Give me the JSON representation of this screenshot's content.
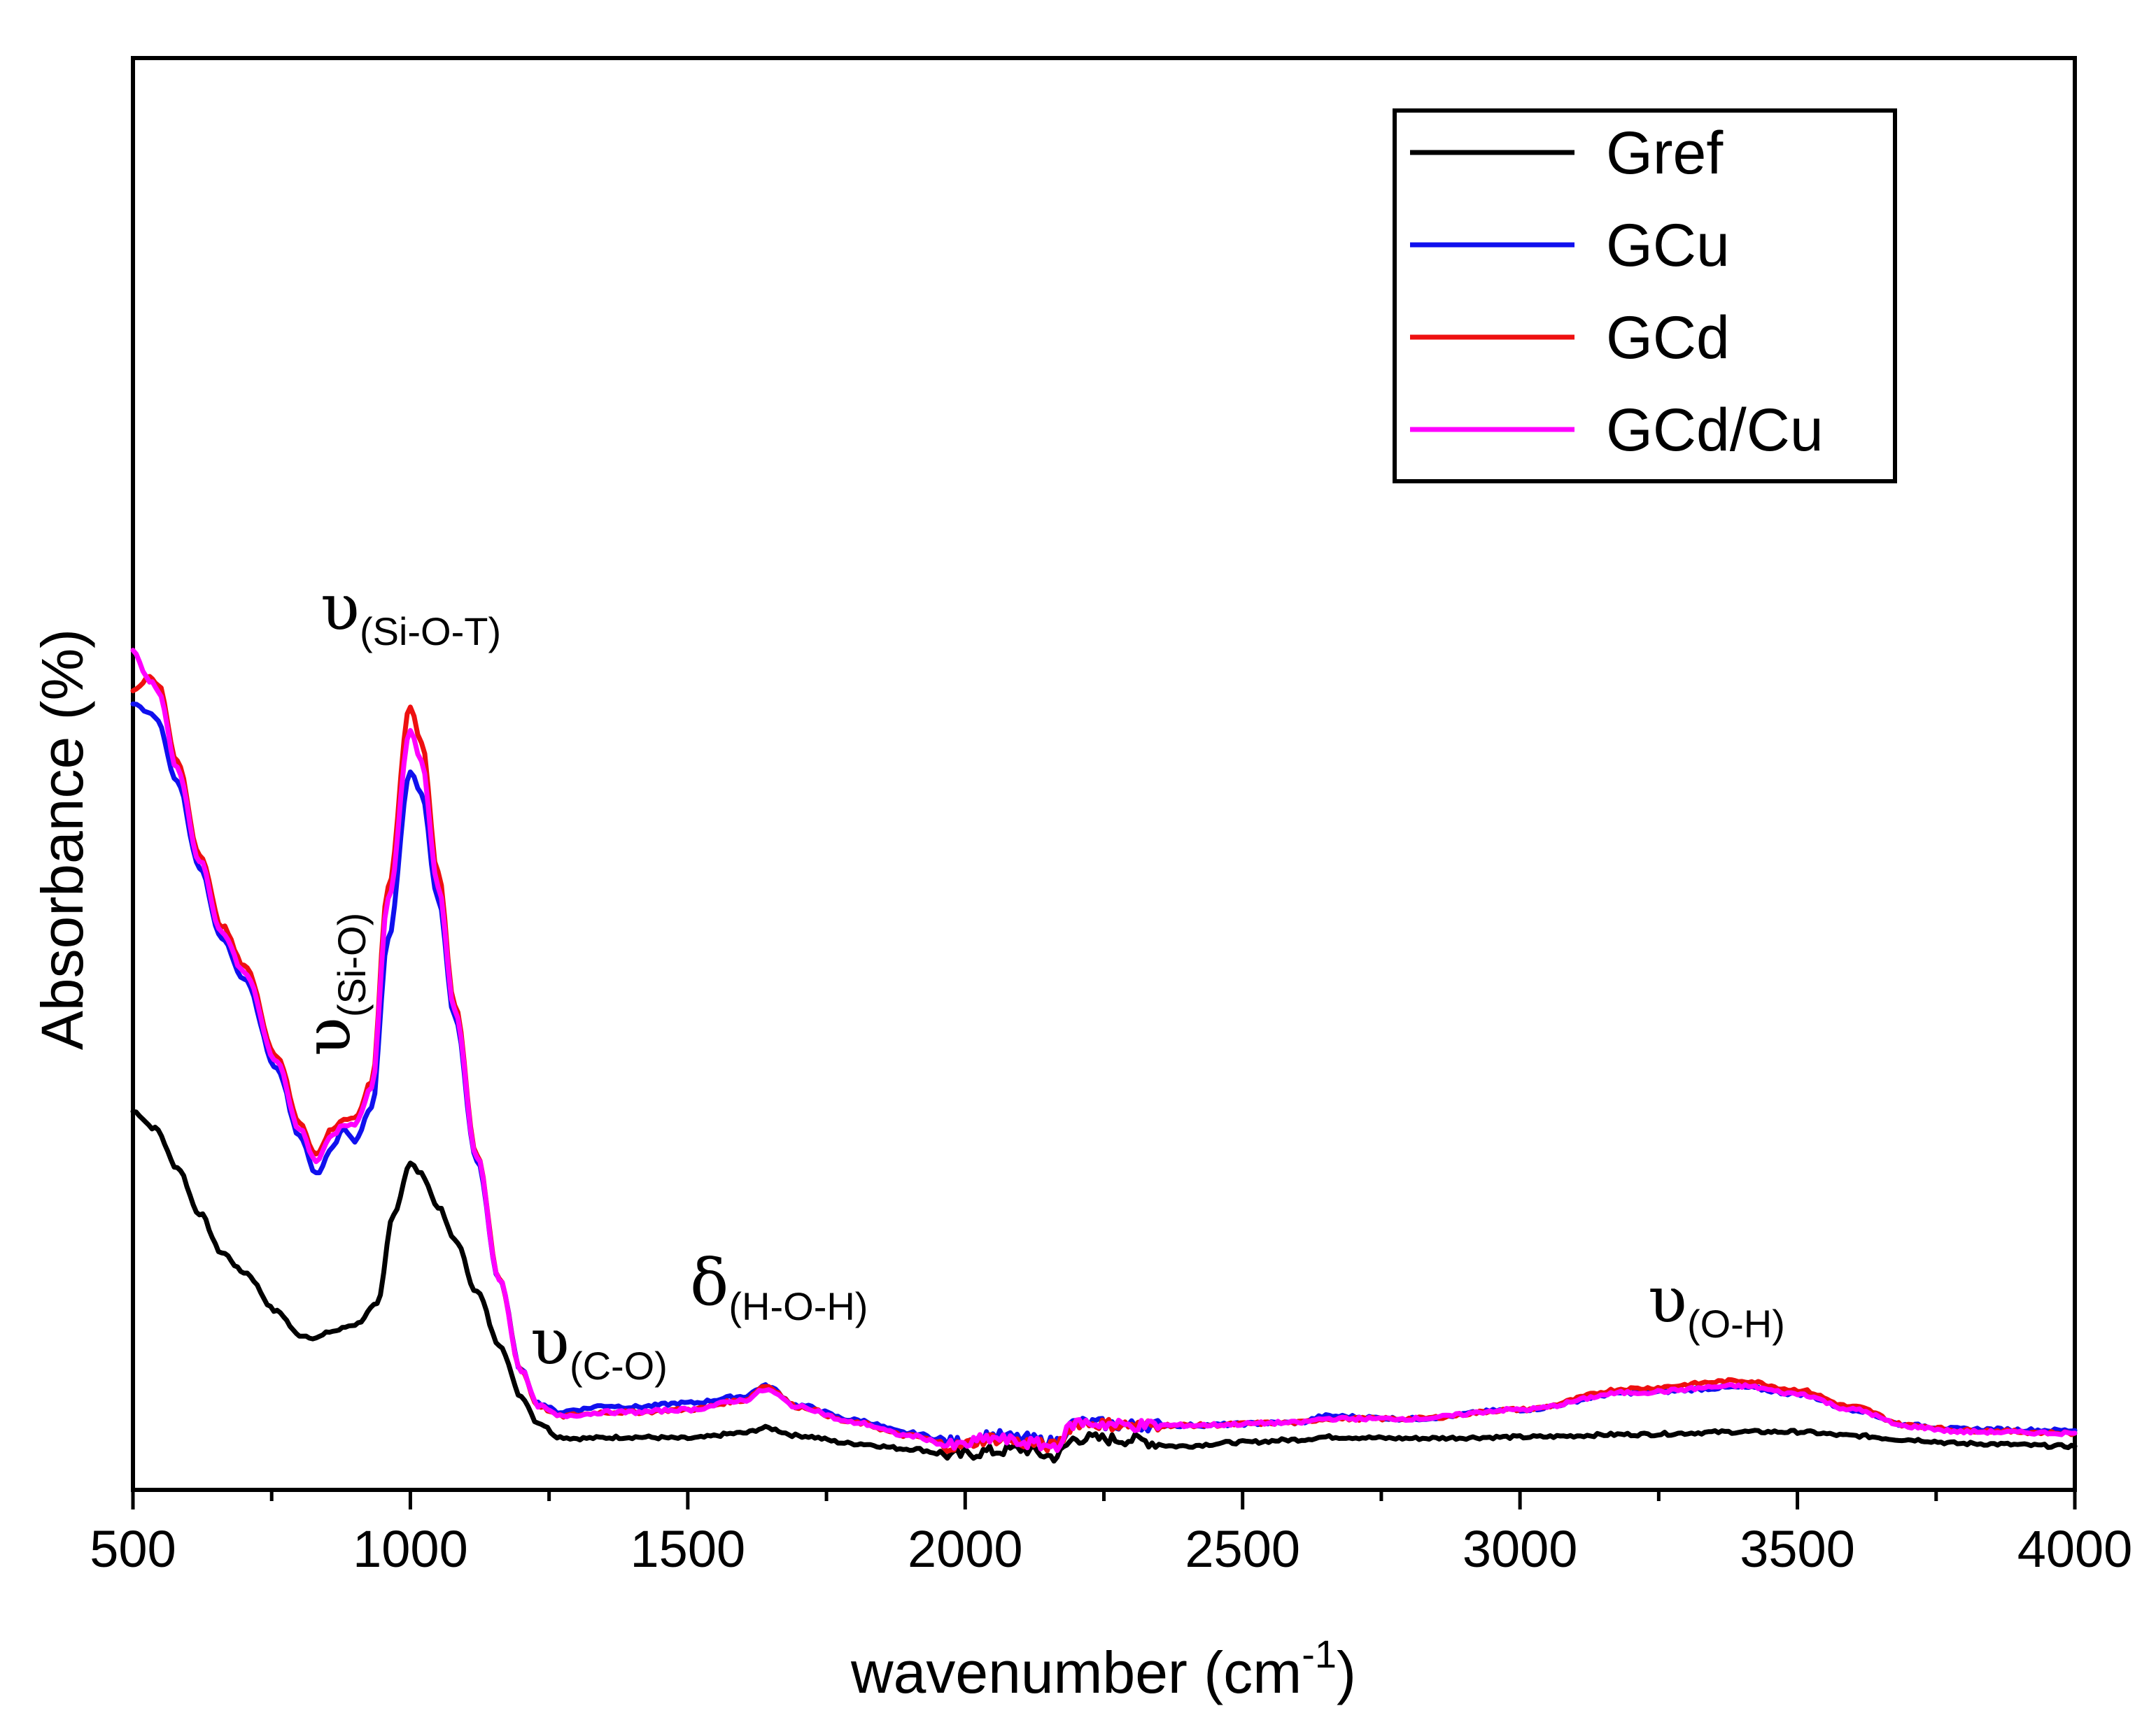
{
  "chart_data": {
    "type": "line",
    "title": "",
    "xlabel": "wavenumber",
    "xlabel_unit_base": "(cm",
    "xlabel_unit_exp": "-1",
    "xlabel_unit_close": ")",
    "ylabel": "Absorbance (%)",
    "xlim": [
      500,
      4000
    ],
    "ylim": [
      0,
      1
    ],
    "x_ticks": [
      500,
      1000,
      1500,
      2000,
      2500,
      3000,
      3500,
      4000
    ],
    "x_tick_labels": [
      "500",
      "1000",
      "1500",
      "2000",
      "2500",
      "3000",
      "3500",
      "4000"
    ],
    "y_ticks_shown": false,
    "legend_position": "top-right",
    "series": [
      {
        "name": "Gref",
        "color": "#000000",
        "x": [
          500,
          540,
          580,
          620,
          660,
          700,
          760,
          800,
          830,
          860,
          900,
          940,
          970,
          1000,
          1020,
          1050,
          1080,
          1120,
          1160,
          1200,
          1230,
          1270,
          1300,
          1400,
          1500,
          1600,
          1640,
          1700,
          1800,
          1900,
          1980,
          2050,
          2100,
          2160,
          2200,
          2300,
          2380,
          2500,
          2600,
          2650,
          2800,
          3000,
          3200,
          3400,
          3500,
          3600,
          3700,
          3800,
          4000
        ],
        "y": [
          0.268,
          0.255,
          0.225,
          0.19,
          0.16,
          0.145,
          0.115,
          0.097,
          0.095,
          0.1,
          0.105,
          0.12,
          0.19,
          0.228,
          0.22,
          0.195,
          0.17,
          0.13,
          0.09,
          0.05,
          0.03,
          0.019,
          0.018,
          0.019,
          0.018,
          0.022,
          0.026,
          0.02,
          0.014,
          0.01,
          0.005,
          0.008,
          0.01,
          0.004,
          0.018,
          0.017,
          0.012,
          0.015,
          0.017,
          0.019,
          0.018,
          0.019,
          0.021,
          0.023,
          0.023,
          0.02,
          0.017,
          0.014,
          0.012
        ]
      },
      {
        "name": "GCu",
        "color": "#1010ee",
        "x": [
          500,
          520,
          540,
          580,
          620,
          660,
          700,
          760,
          800,
          830,
          860,
          880,
          900,
          930,
          960,
          1000,
          1020,
          1050,
          1080,
          1120,
          1160,
          1200,
          1230,
          1270,
          1300,
          1350,
          1400,
          1500,
          1600,
          1640,
          1700,
          1800,
          1900,
          1980,
          2050,
          2100,
          2160,
          2200,
          2300,
          2400,
          2600,
          2650,
          2800,
          3000,
          3200,
          3400,
          3500,
          3600,
          3700,
          3800,
          4000
        ],
        "y": [
          0.58,
          0.575,
          0.57,
          0.52,
          0.455,
          0.4,
          0.37,
          0.3,
          0.25,
          0.22,
          0.24,
          0.255,
          0.245,
          0.27,
          0.4,
          0.528,
          0.51,
          0.43,
          0.34,
          0.23,
          0.14,
          0.07,
          0.045,
          0.038,
          0.04,
          0.043,
          0.042,
          0.045,
          0.05,
          0.058,
          0.043,
          0.032,
          0.022,
          0.015,
          0.02,
          0.018,
          0.015,
          0.03,
          0.028,
          0.028,
          0.03,
          0.035,
          0.033,
          0.04,
          0.053,
          0.057,
          0.052,
          0.04,
          0.028,
          0.025,
          0.024
        ]
      },
      {
        "name": "GCd",
        "color": "#ee1010",
        "x": [
          500,
          530,
          545,
          580,
          620,
          660,
          700,
          760,
          800,
          830,
          860,
          880,
          900,
          930,
          960,
          1000,
          1020,
          1050,
          1080,
          1120,
          1160,
          1200,
          1230,
          1270,
          1300,
          1350,
          1400,
          1500,
          1600,
          1640,
          1700,
          1800,
          1900,
          1980,
          2050,
          2100,
          2160,
          2200,
          2300,
          2400,
          2600,
          2650,
          2800,
          3000,
          3200,
          3400,
          3500,
          3600,
          3700,
          3800,
          4000
        ],
        "y": [
          0.59,
          0.6,
          0.595,
          0.535,
          0.465,
          0.41,
          0.38,
          0.31,
          0.26,
          0.235,
          0.255,
          0.262,
          0.262,
          0.29,
          0.44,
          0.578,
          0.55,
          0.45,
          0.35,
          0.235,
          0.14,
          0.07,
          0.043,
          0.035,
          0.036,
          0.038,
          0.038,
          0.04,
          0.047,
          0.058,
          0.042,
          0.03,
          0.02,
          0.012,
          0.018,
          0.015,
          0.012,
          0.03,
          0.028,
          0.028,
          0.03,
          0.033,
          0.033,
          0.04,
          0.056,
          0.062,
          0.055,
          0.042,
          0.028,
          0.024,
          0.022
        ]
      },
      {
        "name": "GCd/Cu",
        "color": "#ff00ff",
        "x": [
          500,
          530,
          545,
          580,
          620,
          660,
          700,
          760,
          800,
          830,
          860,
          880,
          900,
          930,
          960,
          1000,
          1020,
          1050,
          1080,
          1120,
          1160,
          1200,
          1230,
          1270,
          1300,
          1350,
          1400,
          1500,
          1600,
          1640,
          1700,
          1800,
          1900,
          1980,
          2050,
          2100,
          2160,
          2200,
          2300,
          2400,
          2600,
          2650,
          2800,
          3000,
          3200,
          3400,
          3500,
          3600,
          3700,
          3800,
          4000
        ],
        "y": [
          0.62,
          0.597,
          0.59,
          0.53,
          0.46,
          0.405,
          0.375,
          0.305,
          0.255,
          0.23,
          0.25,
          0.258,
          0.258,
          0.285,
          0.43,
          0.558,
          0.535,
          0.44,
          0.345,
          0.233,
          0.14,
          0.07,
          0.043,
          0.035,
          0.036,
          0.038,
          0.038,
          0.04,
          0.047,
          0.055,
          0.042,
          0.03,
          0.02,
          0.012,
          0.018,
          0.015,
          0.012,
          0.03,
          0.028,
          0.028,
          0.03,
          0.033,
          0.033,
          0.04,
          0.053,
          0.058,
          0.052,
          0.04,
          0.027,
          0.023,
          0.022
        ]
      }
    ],
    "annotations": [
      {
        "symbol": "υ",
        "subscript": "(Si-O-T)",
        "x": 1000,
        "y": 0.62
      },
      {
        "symbol": "υ",
        "subscript": "(Si-O)",
        "x": 820,
        "y": 0.37,
        "rotated": true
      },
      {
        "symbol": "υ",
        "subscript": "(C-O)",
        "x": 1230,
        "y": 0.12
      },
      {
        "symbol": "δ",
        "subscript": "(H-O-H)",
        "x": 1520,
        "y": 0.135
      },
      {
        "symbol": "υ",
        "subscript": "(O-H)",
        "x": 3230,
        "y": 0.125
      }
    ]
  }
}
